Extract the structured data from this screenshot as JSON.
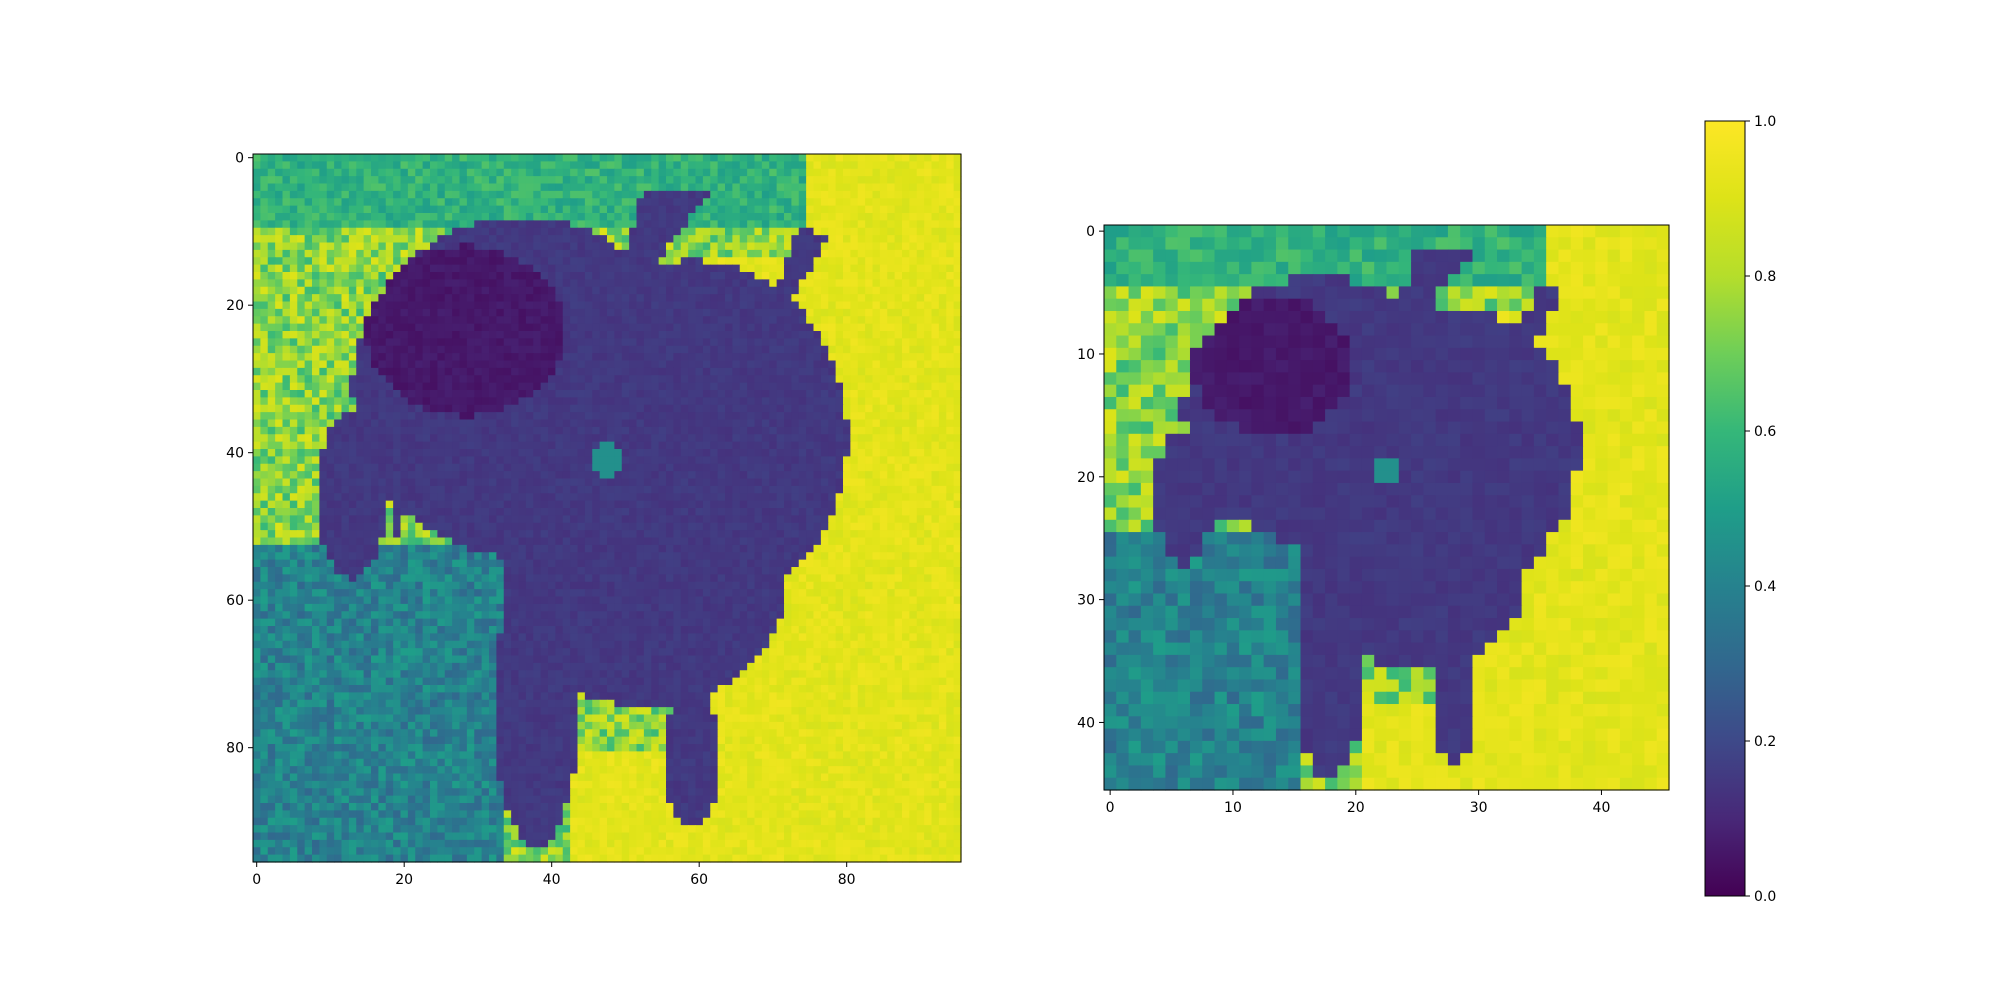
{
  "chart_data": [
    {
      "type": "heatmap",
      "title": "",
      "description_hidden": true,
      "rows": 96,
      "cols": 96,
      "x_ticks": [
        "0",
        "20",
        "40",
        "60",
        "80"
      ],
      "x_tick_values": [
        0,
        20,
        40,
        60,
        80
      ],
      "y_ticks": [
        "0",
        "20",
        "40",
        "60",
        "80"
      ],
      "y_tick_values": [
        0,
        20,
        40,
        60,
        80
      ],
      "xlim": [
        -0.5,
        95.5
      ],
      "ylim": [
        95.5,
        -0.5
      ],
      "colormap": "viridis",
      "value_range": [
        0,
        1
      ]
    },
    {
      "type": "heatmap",
      "title": "",
      "rows": 46,
      "cols": 46,
      "x_ticks": [
        "0",
        "10",
        "20",
        "30",
        "40"
      ],
      "x_tick_values": [
        0,
        10,
        20,
        30,
        40
      ],
      "y_ticks": [
        "0",
        "10",
        "20",
        "30",
        "40"
      ],
      "y_tick_values": [
        0,
        10,
        20,
        30,
        40
      ],
      "xlim": [
        -0.5,
        45.5
      ],
      "ylim": [
        45.5,
        -0.5
      ],
      "colormap": "viridis",
      "value_range": [
        0,
        1
      ]
    }
  ],
  "colorbar": {
    "ticks": [
      "0.0",
      "0.2",
      "0.4",
      "0.6",
      "0.8",
      "1.0"
    ],
    "tick_values": [
      0.0,
      0.2,
      0.4,
      0.6,
      0.8,
      1.0
    ],
    "range": [
      0,
      1
    ],
    "colormap": "viridis"
  }
}
